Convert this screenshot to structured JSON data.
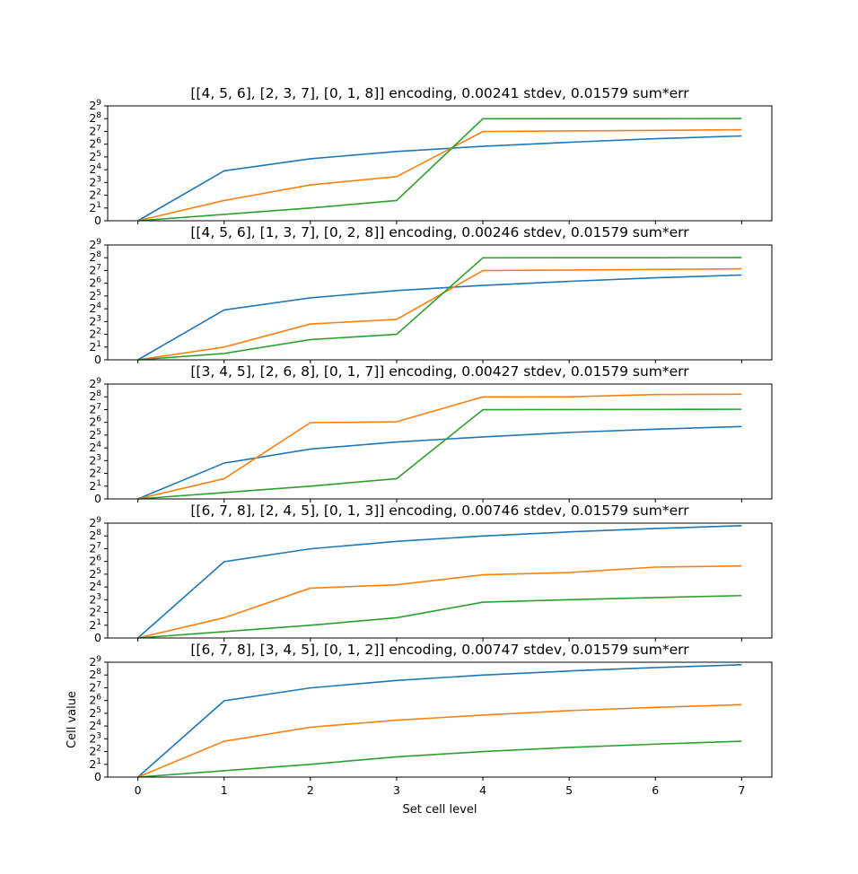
{
  "chart_data": [
    {
      "type": "line",
      "title": "[[4, 5, 6], [2, 3, 7], [0, 1, 8]] encoding, 0.00241 stdev, 0.01579 sum*err",
      "x": [
        0,
        1,
        2,
        3,
        4,
        5,
        6,
        7
      ],
      "series": [
        {
          "color": "#1f77b4",
          "values": [
            0,
            15,
            29,
            43,
            57,
            71,
            86,
            100
          ]
        },
        {
          "color": "#ff7f0e",
          "values": [
            0,
            3,
            7,
            11,
            127,
            131,
            135,
            140
          ]
        },
        {
          "color": "#2ca02c",
          "values": [
            0,
            1,
            2,
            3,
            255,
            256,
            257,
            258
          ]
        }
      ],
      "xlabel": "",
      "ylabel": "",
      "yscale": "symlog2",
      "ylim": [
        0,
        512
      ]
    },
    {
      "type": "line",
      "title": "[[4, 5, 6], [1, 3, 7], [0, 2, 8]] encoding, 0.00246 stdev, 0.01579 sum*err",
      "x": [
        0,
        1,
        2,
        3,
        4,
        5,
        6,
        7
      ],
      "series": [
        {
          "color": "#1f77b4",
          "values": [
            0,
            15,
            29,
            43,
            57,
            71,
            86,
            100
          ]
        },
        {
          "color": "#ff7f0e",
          "values": [
            0,
            2,
            7,
            9,
            127,
            131,
            135,
            140
          ]
        },
        {
          "color": "#2ca02c",
          "values": [
            0,
            1,
            3,
            4,
            255,
            256,
            257,
            258
          ]
        }
      ],
      "xlabel": "",
      "ylabel": "",
      "yscale": "symlog2",
      "ylim": [
        0,
        512
      ]
    },
    {
      "type": "line",
      "title": "[[3, 4, 5], [2, 6, 8], [0, 1, 7]] encoding, 0.00427 stdev, 0.01579 sum*err",
      "x": [
        0,
        1,
        2,
        3,
        4,
        5,
        6,
        7
      ],
      "series": [
        {
          "color": "#1f77b4",
          "values": [
            0,
            7,
            15,
            22,
            29,
            37,
            44,
            51
          ]
        },
        {
          "color": "#ff7f0e",
          "values": [
            0,
            3,
            63,
            66,
            255,
            256,
            290,
            295
          ]
        },
        {
          "color": "#2ca02c",
          "values": [
            0,
            1,
            2,
            3,
            127,
            128,
            129,
            130
          ]
        }
      ],
      "xlabel": "",
      "ylabel": "",
      "yscale": "symlog2",
      "ylim": [
        0,
        512
      ]
    },
    {
      "type": "line",
      "title": "[[6, 7, 8], [2, 4, 5], [0, 1, 3]] encoding, 0.00746 stdev, 0.01579 sum*err",
      "x": [
        0,
        1,
        2,
        3,
        4,
        5,
        6,
        7
      ],
      "series": [
        {
          "color": "#1f77b4",
          "values": [
            0,
            63,
            127,
            190,
            255,
            318,
            383,
            446
          ]
        },
        {
          "color": "#ff7f0e",
          "values": [
            0,
            3,
            15,
            18,
            31,
            35,
            47,
            50
          ]
        },
        {
          "color": "#2ca02c",
          "values": [
            0,
            1,
            2,
            3,
            7,
            8,
            9,
            10
          ]
        }
      ],
      "xlabel": "",
      "ylabel": "",
      "yscale": "symlog2",
      "ylim": [
        0,
        512
      ]
    },
    {
      "type": "line",
      "title": "[[6, 7, 8], [3, 4, 5], [0, 1, 2]] encoding, 0.00747 stdev, 0.01579 sum*err",
      "x": [
        0,
        1,
        2,
        3,
        4,
        5,
        6,
        7
      ],
      "series": [
        {
          "color": "#1f77b4",
          "values": [
            0,
            63,
            127,
            190,
            255,
            318,
            383,
            446
          ]
        },
        {
          "color": "#ff7f0e",
          "values": [
            0,
            7,
            15,
            22,
            29,
            37,
            44,
            51
          ]
        },
        {
          "color": "#2ca02c",
          "values": [
            0,
            1,
            2,
            3,
            4,
            5,
            6,
            7
          ]
        }
      ],
      "xlabel": "Set cell level",
      "ylabel": "Cell value",
      "yscale": "symlog2",
      "ylim": [
        0,
        512
      ]
    }
  ],
  "y_ticks": [
    {
      "value": 0,
      "base": "0",
      "exp": ""
    },
    {
      "value": 2,
      "base": "2",
      "exp": "1"
    },
    {
      "value": 4,
      "base": "2",
      "exp": "2"
    },
    {
      "value": 8,
      "base": "2",
      "exp": "3"
    },
    {
      "value": 16,
      "base": "2",
      "exp": "4"
    },
    {
      "value": 32,
      "base": "2",
      "exp": "5"
    },
    {
      "value": 64,
      "base": "2",
      "exp": "6"
    },
    {
      "value": 128,
      "base": "2",
      "exp": "7"
    },
    {
      "value": 256,
      "base": "2",
      "exp": "8"
    },
    {
      "value": 512,
      "base": "2",
      "exp": "9"
    }
  ],
  "x_ticks": [
    "0",
    "1",
    "2",
    "3",
    "4",
    "5",
    "6",
    "7"
  ]
}
